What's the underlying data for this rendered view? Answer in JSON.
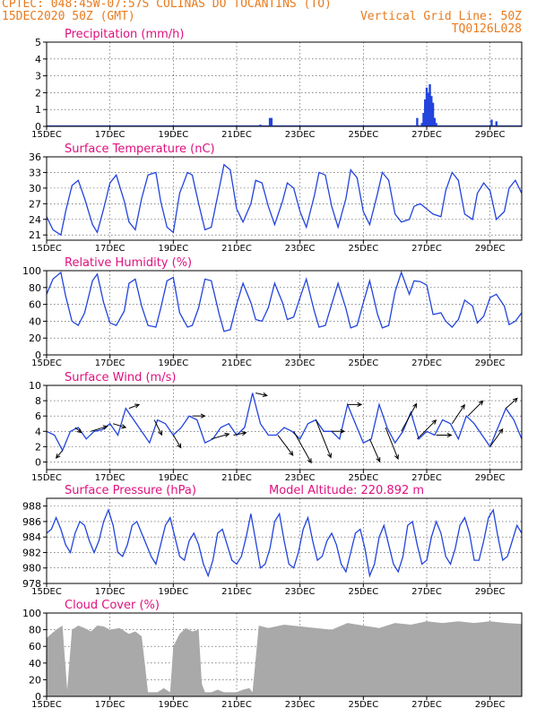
{
  "header": {
    "line1_left": "CPTEC:  048:45W-07:57S  COLINAS DO TOCANTINS (TO)",
    "line2_left": "15DEC2020 50Z (GMT)",
    "line2_right": "Vertical Grid Line: 50Z",
    "line3_right": "TQ0126L028"
  },
  "colors": {
    "header": "#e87b1f",
    "title": "#e0107e",
    "series": "#2244dd",
    "cloud": "#a9a9a9",
    "wind_arrow": "#000000"
  },
  "x_labels": [
    "15DEC",
    "17DEC",
    "19DEC",
    "21DEC",
    "23DEC",
    "25DEC",
    "27DEC",
    "29DEC"
  ],
  "x_days": [
    0,
    2,
    4,
    6,
    8,
    10,
    12,
    14
  ],
  "x_range": [
    0,
    15
  ],
  "chart_data": [
    {
      "type": "bar",
      "title": "Precipitation (mm/h)",
      "ylim": [
        0,
        5
      ],
      "yticks": [
        0,
        1,
        2,
        3,
        4,
        5
      ],
      "x": [
        6.75,
        7.05,
        7.1,
        11.7,
        11.85,
        11.9,
        11.95,
        12.0,
        12.05,
        12.1,
        12.15,
        12.2,
        12.25,
        12.3,
        14.05,
        14.2
      ],
      "values": [
        0.1,
        0.5,
        0.5,
        0.5,
        0.2,
        0.8,
        1.6,
        2.3,
        2.0,
        2.5,
        1.8,
        1.4,
        0.5,
        0.2,
        0.4,
        0.3
      ]
    },
    {
      "type": "line",
      "title": "Surface Temperature (nC)",
      "ylim": [
        20,
        36
      ],
      "yticks": [
        21,
        24,
        27,
        30,
        33,
        36
      ],
      "x": [
        0,
        0.2,
        0.45,
        0.6,
        0.8,
        1.0,
        1.2,
        1.45,
        1.6,
        1.8,
        2.0,
        2.2,
        2.45,
        2.6,
        2.8,
        3.0,
        3.2,
        3.45,
        3.6,
        3.8,
        4.0,
        4.2,
        4.45,
        4.6,
        4.8,
        5.0,
        5.2,
        5.45,
        5.6,
        5.8,
        6.0,
        6.2,
        6.45,
        6.6,
        6.8,
        7.0,
        7.2,
        7.45,
        7.6,
        7.8,
        8.0,
        8.2,
        8.45,
        8.6,
        8.8,
        9.0,
        9.2,
        9.45,
        9.6,
        9.8,
        10.0,
        10.2,
        10.45,
        10.6,
        10.8,
        11.0,
        11.2,
        11.45,
        11.6,
        11.8,
        12.0,
        12.2,
        12.45,
        12.6,
        12.8,
        13.0,
        13.2,
        13.45,
        13.6,
        13.8,
        14.0,
        14.2,
        14.45,
        14.6,
        14.8,
        15.0
      ],
      "y": [
        24.5,
        22.0,
        21.0,
        25.5,
        30.5,
        31.5,
        28.0,
        23.0,
        21.5,
        26.0,
        31.0,
        32.5,
        27.5,
        23.5,
        22.0,
        28.0,
        32.5,
        33.0,
        27.5,
        22.5,
        21.5,
        29.0,
        33.0,
        32.5,
        27.0,
        22.0,
        22.5,
        30.0,
        34.5,
        33.5,
        26.0,
        23.5,
        27.0,
        31.5,
        31.0,
        26.5,
        23.0,
        27.5,
        31.0,
        30.0,
        25.5,
        22.5,
        28.5,
        33.0,
        32.5,
        26.5,
        22.5,
        28.0,
        33.5,
        32.0,
        25.5,
        23.0,
        29.0,
        33.0,
        31.5,
        25.0,
        23.5,
        24.0,
        26.5,
        27.0,
        26.0,
        25.0,
        24.5,
        29.5,
        33.0,
        31.5,
        25.0,
        24.0,
        29.0,
        31.0,
        29.5,
        24.0,
        25.5,
        30.0,
        31.5,
        29.0
      ]
    },
    {
      "type": "line",
      "title": "Relative Humidity (%)",
      "ylim": [
        0,
        100
      ],
      "yticks": [
        0,
        20,
        40,
        60,
        80,
        100
      ],
      "x": [
        0,
        0.2,
        0.45,
        0.6,
        0.8,
        1.0,
        1.2,
        1.45,
        1.6,
        1.8,
        2.0,
        2.2,
        2.45,
        2.6,
        2.8,
        3.0,
        3.2,
        3.45,
        3.6,
        3.8,
        4.0,
        4.2,
        4.45,
        4.6,
        4.8,
        5.0,
        5.2,
        5.45,
        5.6,
        5.8,
        6.0,
        6.2,
        6.45,
        6.6,
        6.8,
        7.0,
        7.2,
        7.45,
        7.6,
        7.8,
        8.0,
        8.2,
        8.45,
        8.6,
        8.8,
        9.0,
        9.2,
        9.45,
        9.6,
        9.8,
        10.0,
        10.2,
        10.45,
        10.6,
        10.8,
        11.0,
        11.2,
        11.45,
        11.6,
        11.8,
        12.0,
        12.2,
        12.45,
        12.6,
        12.8,
        13.0,
        13.2,
        13.45,
        13.6,
        13.8,
        14.0,
        14.2,
        14.45,
        14.6,
        14.8,
        15.0
      ],
      "y": [
        72,
        90,
        98,
        70,
        40,
        35,
        50,
        88,
        96,
        62,
        38,
        35,
        52,
        85,
        90,
        58,
        35,
        33,
        55,
        88,
        92,
        50,
        33,
        35,
        56,
        90,
        88,
        48,
        28,
        30,
        60,
        85,
        62,
        42,
        40,
        56,
        85,
        62,
        42,
        45,
        68,
        90,
        52,
        33,
        35,
        60,
        85,
        55,
        32,
        35,
        62,
        88,
        48,
        32,
        35,
        75,
        98,
        72,
        88,
        87,
        83,
        48,
        50,
        40,
        33,
        42,
        65,
        58,
        38,
        46,
        68,
        72,
        58,
        36,
        40,
        50
      ]
    },
    {
      "type": "line",
      "title": "Surface Wind (m/s)",
      "ylim": [
        -1,
        10
      ],
      "yticks": [
        0,
        2,
        4,
        6,
        8,
        10
      ],
      "x": [
        0,
        0.25,
        0.5,
        0.75,
        1.0,
        1.25,
        1.5,
        1.75,
        2.0,
        2.25,
        2.5,
        2.75,
        3.0,
        3.25,
        3.5,
        3.75,
        4.0,
        4.25,
        4.5,
        4.75,
        5.0,
        5.25,
        5.5,
        5.75,
        6.0,
        6.25,
        6.5,
        6.75,
        7.0,
        7.25,
        7.5,
        7.75,
        8.0,
        8.25,
        8.5,
        8.75,
        9.0,
        9.25,
        9.5,
        9.75,
        10.0,
        10.25,
        10.5,
        10.75,
        11.0,
        11.25,
        11.5,
        11.75,
        12.0,
        12.25,
        12.5,
        12.75,
        13.0,
        13.25,
        13.5,
        13.75,
        14.0,
        14.25,
        14.5,
        14.75,
        15.0
      ],
      "y": [
        4.0,
        3.5,
        1.5,
        4.0,
        4.5,
        3.0,
        4.0,
        4.2,
        5.0,
        3.5,
        7.0,
        5.5,
        4.0,
        2.5,
        5.5,
        5.0,
        3.5,
        4.5,
        6.0,
        5.5,
        2.5,
        3.0,
        4.5,
        5.0,
        3.5,
        4.5,
        9.0,
        5.0,
        3.5,
        3.5,
        4.5,
        4.0,
        3.0,
        5.0,
        5.5,
        4.0,
        4.0,
        3.0,
        7.5,
        5.0,
        2.5,
        3.0,
        7.5,
        4.5,
        2.5,
        4.0,
        6.5,
        3.0,
        4.0,
        3.5,
        5.5,
        5.0,
        3.0,
        6.0,
        5.0,
        3.5,
        2.0,
        4.5,
        7.0,
        5.5,
        3.0
      ],
      "arrows": {
        "x": [
          0.5,
          0.9,
          1.4,
          2.1,
          2.6,
          3.4,
          4.0,
          4.6,
          5.2,
          5.9,
          6.6,
          7.3,
          7.8,
          8.5,
          9.0,
          9.5,
          10.2,
          10.7,
          11.2,
          11.7,
          12.3,
          12.8,
          13.3,
          14.0,
          14.5
        ],
        "u": [
          -0.5,
          0.5,
          1.3,
          1.0,
          0.8,
          0.6,
          0.6,
          1.0,
          1.4,
          1.0,
          0.9,
          1.2,
          1.4,
          1.2,
          1.0,
          1.1,
          0.8,
          1.0,
          1.2,
          1.5,
          1.2,
          1.0,
          1.2,
          1.0,
          0.9
        ],
        "v": [
          -0.6,
          -0.4,
          0.4,
          -0.3,
          0.3,
          -1.2,
          -1.0,
          0.0,
          0.4,
          0.2,
          -0.2,
          -1.6,
          -2.5,
          -3.0,
          0.0,
          0.0,
          -1.8,
          -2.5,
          2.2,
          1.5,
          0.0,
          1.5,
          1.2,
          1.4,
          0.8
        ]
      }
    },
    {
      "type": "line",
      "title": "Surface Pressure (hPa)",
      "subtitle": "Model Altitude: 220.892  m",
      "ylim": [
        978,
        989
      ],
      "yticks": [
        978,
        980,
        982,
        984,
        986,
        988
      ],
      "x": [
        0,
        0.15,
        0.3,
        0.45,
        0.6,
        0.75,
        0.9,
        1.05,
        1.2,
        1.35,
        1.5,
        1.65,
        1.8,
        1.95,
        2.1,
        2.25,
        2.4,
        2.55,
        2.7,
        2.85,
        3.0,
        3.15,
        3.3,
        3.45,
        3.6,
        3.75,
        3.9,
        4.05,
        4.2,
        4.35,
        4.5,
        4.65,
        4.8,
        4.95,
        5.1,
        5.25,
        5.4,
        5.55,
        5.7,
        5.85,
        6.0,
        6.15,
        6.3,
        6.45,
        6.6,
        6.75,
        6.9,
        7.05,
        7.2,
        7.35,
        7.5,
        7.65,
        7.8,
        7.95,
        8.1,
        8.25,
        8.4,
        8.55,
        8.7,
        8.85,
        9.0,
        9.15,
        9.3,
        9.45,
        9.6,
        9.75,
        9.9,
        10.05,
        10.2,
        10.35,
        10.5,
        10.65,
        10.8,
        10.95,
        11.1,
        11.25,
        11.4,
        11.55,
        11.7,
        11.85,
        12.0,
        12.15,
        12.3,
        12.45,
        12.6,
        12.75,
        12.9,
        13.05,
        13.2,
        13.35,
        13.5,
        13.65,
        13.8,
        13.95,
        14.1,
        14.25,
        14.4,
        14.55,
        14.7,
        14.85,
        15.0
      ],
      "y": [
        984.5,
        985.0,
        986.5,
        985.0,
        983.0,
        982.0,
        984.5,
        986.0,
        985.5,
        983.5,
        982.0,
        983.5,
        986.0,
        987.5,
        985.5,
        982.0,
        981.5,
        983.0,
        985.5,
        986.0,
        984.5,
        983.0,
        981.5,
        980.5,
        983.0,
        985.5,
        986.5,
        984.0,
        981.5,
        981.0,
        983.5,
        984.5,
        983.0,
        980.5,
        979.0,
        981.0,
        984.5,
        985.0,
        983.0,
        981.0,
        980.5,
        981.5,
        984.0,
        987.0,
        983.5,
        980.0,
        980.5,
        982.5,
        986.0,
        987.0,
        983.5,
        980.5,
        980.0,
        982.0,
        985.0,
        986.5,
        983.5,
        981.0,
        981.5,
        983.5,
        984.5,
        983.0,
        980.5,
        979.5,
        982.0,
        984.5,
        985.0,
        982.5,
        979.0,
        980.5,
        984.0,
        985.5,
        983.0,
        980.5,
        979.5,
        981.5,
        985.5,
        986.0,
        983.0,
        980.5,
        981.0,
        984.0,
        986.0,
        984.5,
        981.5,
        980.5,
        982.5,
        985.5,
        986.5,
        984.5,
        981.0,
        981.0,
        983.5,
        986.5,
        987.5,
        984.0,
        981.0,
        981.5,
        983.5,
        985.5,
        984.5
      ]
    },
    {
      "type": "area",
      "title": "Cloud Cover (%)",
      "ylim": [
        0,
        100
      ],
      "yticks": [
        0,
        20,
        40,
        60,
        80,
        100
      ],
      "x": [
        0,
        0.3,
        0.5,
        0.65,
        0.8,
        1.0,
        1.2,
        1.4,
        1.6,
        1.8,
        2.0,
        2.3,
        2.6,
        2.8,
        3.0,
        3.1,
        3.2,
        3.3,
        3.5,
        3.7,
        3.9,
        4.0,
        4.2,
        4.4,
        4.6,
        4.8,
        4.9,
        5.0,
        5.2,
        5.4,
        5.6,
        5.8,
        6.0,
        6.2,
        6.4,
        6.5,
        6.7,
        7.0,
        7.5,
        8.0,
        8.5,
        9.0,
        9.5,
        10.0,
        10.5,
        11.0,
        11.5,
        12.0,
        12.5,
        13.0,
        13.5,
        14.0,
        14.5,
        15.0
      ],
      "y": [
        70,
        80,
        85,
        8,
        80,
        85,
        82,
        78,
        85,
        84,
        80,
        82,
        75,
        78,
        72,
        40,
        5,
        5,
        5,
        10,
        5,
        60,
        75,
        82,
        78,
        80,
        15,
        5,
        5,
        8,
        5,
        5,
        5,
        8,
        10,
        5,
        85,
        82,
        86,
        84,
        82,
        80,
        88,
        85,
        82,
        88,
        86,
        90,
        88,
        90,
        88,
        90,
        88,
        87
      ]
    }
  ]
}
